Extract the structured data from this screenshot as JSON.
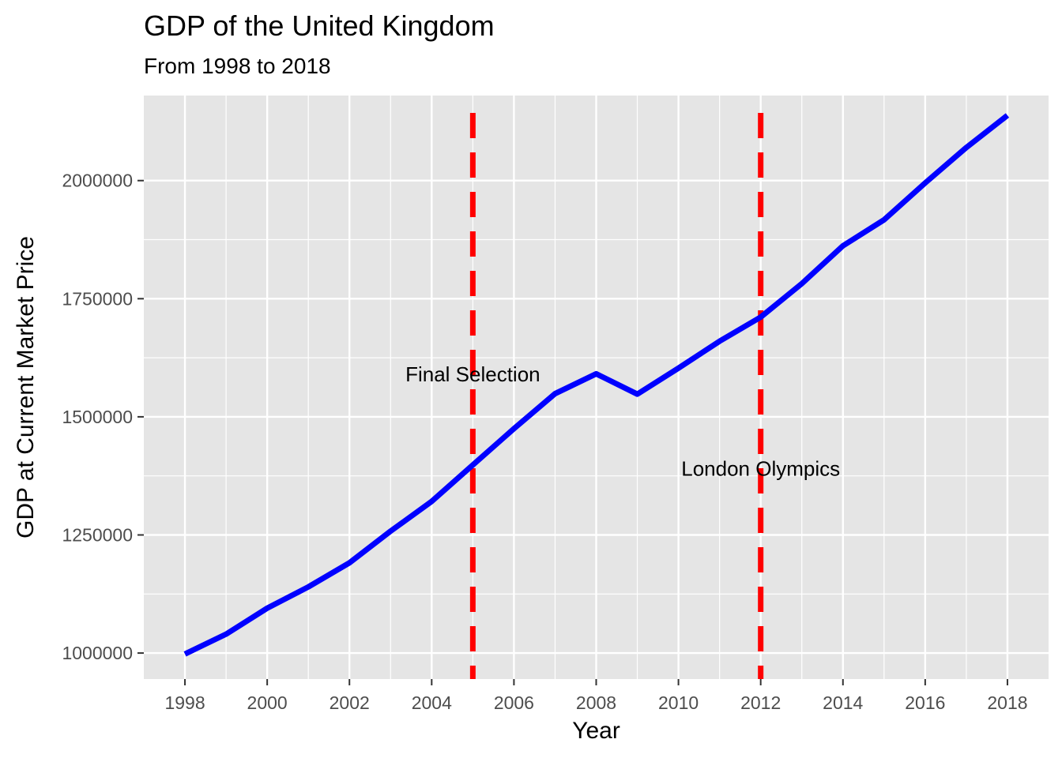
{
  "chart_data": {
    "type": "line",
    "title": "GDP of the United Kingdom",
    "subtitle": "From 1998 to 2018",
    "xlabel": "Year",
    "ylabel": "GDP at Current Market Price",
    "xlim": [
      1997,
      2019
    ],
    "ylim": [
      945000,
      2180000
    ],
    "x_ticks": [
      1998,
      2000,
      2002,
      2004,
      2006,
      2008,
      2010,
      2012,
      2014,
      2016,
      2018
    ],
    "y_ticks": [
      1000000,
      1250000,
      1500000,
      1750000,
      2000000
    ],
    "grid": true,
    "legend": "none",
    "series": [
      {
        "color": "#0000ff",
        "x": [
          1998,
          1999,
          2000,
          2001,
          2002,
          2003,
          2004,
          2005,
          2006,
          2007,
          2008,
          2009,
          2010,
          2011,
          2012,
          2013,
          2014,
          2015,
          2016,
          2017,
          2018
        ],
        "values": [
          998000,
          1040000,
          1095000,
          1140000,
          1191000,
          1258000,
          1321000,
          1398000,
          1475000,
          1549000,
          1591000,
          1548000,
          1603000,
          1660000,
          1711000,
          1782000,
          1862000,
          1917000,
          1995000,
          2070000,
          2138000
        ]
      }
    ],
    "vlines": [
      {
        "x": 2005,
        "color": "#ff0000",
        "style": "dashed"
      },
      {
        "x": 2012,
        "color": "#ff0000",
        "style": "dashed"
      }
    ],
    "annotations": [
      {
        "text": "Final Selection",
        "x": 2005,
        "y": 1590000
      },
      {
        "text": "London Olympics",
        "x": 2012,
        "y": 1390000
      }
    ]
  }
}
